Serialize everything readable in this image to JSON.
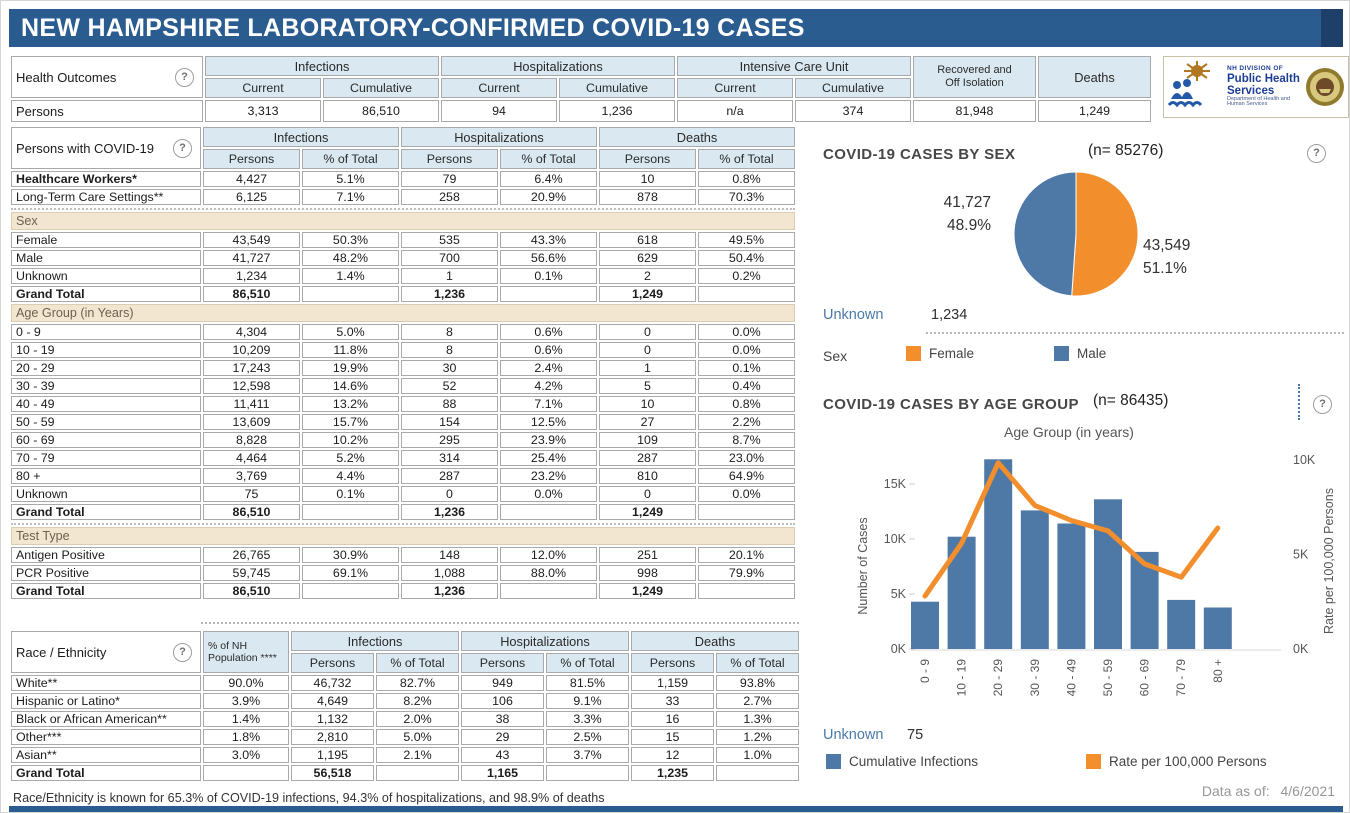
{
  "title": "NEW HAMPSHIRE LABORATORY-CONFIRMED COVID-19 CASES",
  "icons": {
    "help": "?"
  },
  "colors": {
    "bar_blue": "#4e79a7",
    "line_orange": "#f28e2b",
    "header_blue": "#d9e8f1",
    "band_tan": "#f3e6d1",
    "titlebar_blue": "#2b5c90"
  },
  "health_outcomes": {
    "label": "Health Outcomes",
    "groups": [
      "Infections",
      "Hospitalizations",
      "Intensive Care Unit"
    ],
    "sub_headers": [
      "Current",
      "Cumulative"
    ],
    "recovered_line1": "Recovered and",
    "recovered_line2": "Off Isolation",
    "deaths_header": "Deaths",
    "row_label": "Persons",
    "values": [
      "3,313",
      "86,510",
      "94",
      "1,236",
      "n/a",
      "374",
      "81,948",
      "1,249"
    ]
  },
  "logo": {
    "line1": "NH DIVISION OF",
    "line2": "Public Health Services",
    "line3": "Department of Health and Human Services"
  },
  "persons_table": {
    "label": "Persons with COVID-19",
    "groups": [
      "Infections",
      "Hospitalizations",
      "Deaths"
    ],
    "sub_headers": [
      "Persons",
      "% of Total",
      "Persons",
      "% of Total",
      "Persons",
      "% of Total"
    ],
    "blocks": [
      {
        "type": "rows",
        "rows": [
          {
            "label": "Healthcare Workers*",
            "bold": true,
            "cells": [
              "4,427",
              "5.1%",
              "79",
              "6.4%",
              "10",
              "0.8%"
            ]
          },
          {
            "label": "Long-Term Care Settings**",
            "cells": [
              "6,125",
              "7.1%",
              "258",
              "20.9%",
              "878",
              "70.3%"
            ]
          }
        ]
      },
      {
        "type": "divider"
      },
      {
        "type": "band",
        "title": "Sex"
      },
      {
        "type": "rows",
        "rows": [
          {
            "label": "Female",
            "cells": [
              "43,549",
              "50.3%",
              "535",
              "43.3%",
              "618",
              "49.5%"
            ]
          },
          {
            "label": "Male",
            "cells": [
              "41,727",
              "48.2%",
              "700",
              "56.6%",
              "629",
              "50.4%"
            ]
          },
          {
            "label": "Unknown",
            "cells": [
              "1,234",
              "1.4%",
              "1",
              "0.1%",
              "2",
              "0.2%"
            ]
          },
          {
            "label": "Grand Total",
            "total": true,
            "cells": [
              "86,510",
              "",
              "1,236",
              "",
              "1,249",
              ""
            ]
          }
        ]
      },
      {
        "type": "band",
        "title": "Age Group (in Years)"
      },
      {
        "type": "rows",
        "rows": [
          {
            "label": "0 - 9",
            "cells": [
              "4,304",
              "5.0%",
              "8",
              "0.6%",
              "0",
              "0.0%"
            ]
          },
          {
            "label": "10 - 19",
            "cells": [
              "10,209",
              "11.8%",
              "8",
              "0.6%",
              "0",
              "0.0%"
            ]
          },
          {
            "label": "20 - 29",
            "cells": [
              "17,243",
              "19.9%",
              "30",
              "2.4%",
              "1",
              "0.1%"
            ]
          },
          {
            "label": "30 - 39",
            "cells": [
              "12,598",
              "14.6%",
              "52",
              "4.2%",
              "5",
              "0.4%"
            ]
          },
          {
            "label": "40 - 49",
            "cells": [
              "11,411",
              "13.2%",
              "88",
              "7.1%",
              "10",
              "0.8%"
            ]
          },
          {
            "label": "50 - 59",
            "cells": [
              "13,609",
              "15.7%",
              "154",
              "12.5%",
              "27",
              "2.2%"
            ]
          },
          {
            "label": "60 - 69",
            "cells": [
              "8,828",
              "10.2%",
              "295",
              "23.9%",
              "109",
              "8.7%"
            ]
          },
          {
            "label": "70 - 79",
            "cells": [
              "4,464",
              "5.2%",
              "314",
              "25.4%",
              "287",
              "23.0%"
            ]
          },
          {
            "label": "80 +",
            "cells": [
              "3,769",
              "4.4%",
              "287",
              "23.2%",
              "810",
              "64.9%"
            ]
          },
          {
            "label": "Unknown",
            "cells": [
              "75",
              "0.1%",
              "0",
              "0.0%",
              "0",
              "0.0%"
            ]
          },
          {
            "label": "Grand Total",
            "total": true,
            "cells": [
              "86,510",
              "",
              "1,236",
              "",
              "1,249",
              ""
            ]
          }
        ]
      },
      {
        "type": "divider"
      },
      {
        "type": "band",
        "title": "Test Type"
      },
      {
        "type": "rows",
        "rows": [
          {
            "label": "Antigen Positive",
            "cells": [
              "26,765",
              "30.9%",
              "148",
              "12.0%",
              "251",
              "20.1%"
            ]
          },
          {
            "label": "PCR Positive",
            "cells": [
              "59,745",
              "69.1%",
              "1,088",
              "88.0%",
              "998",
              "79.9%"
            ]
          },
          {
            "label": "Grand Total",
            "total": true,
            "cells": [
              "86,510",
              "",
              "1,236",
              "",
              "1,249",
              ""
            ]
          }
        ]
      }
    ]
  },
  "race_table": {
    "label": "Race / Ethnicity",
    "pop_header": "% of NH Population ****",
    "groups": [
      "Infections",
      "Hospitalizations",
      "Deaths"
    ],
    "sub_headers": [
      "Persons",
      "% of Total",
      "Persons",
      "% of Total",
      "Persons",
      "% of Total"
    ],
    "rows": [
      {
        "label": "White**",
        "cells": [
          "90.0%",
          "46,732",
          "82.7%",
          "949",
          "81.5%",
          "1,159",
          "93.8%"
        ]
      },
      {
        "label": "Hispanic or Latino*",
        "cells": [
          "3.9%",
          "4,649",
          "8.2%",
          "106",
          "9.1%",
          "33",
          "2.7%"
        ]
      },
      {
        "label": "Black or African American**",
        "cells": [
          "1.4%",
          "1,132",
          "2.0%",
          "38",
          "3.3%",
          "16",
          "1.3%"
        ]
      },
      {
        "label": "Other***",
        "cells": [
          "1.8%",
          "2,810",
          "5.0%",
          "29",
          "2.5%",
          "15",
          "1.2%"
        ]
      },
      {
        "label": "Asian**",
        "cells": [
          "3.0%",
          "1,195",
          "2.1%",
          "43",
          "3.7%",
          "12",
          "1.0%"
        ]
      },
      {
        "label": "Grand Total",
        "total": true,
        "cells": [
          "",
          "56,518",
          "",
          "1,165",
          "",
          "1,235",
          ""
        ]
      }
    ]
  },
  "footnote": "Race/Ethnicity is known for 65.3% of COVID-19 infections, 94.3% of hospitalizations, and 98.9% of deaths",
  "sex_section": {
    "title": "COVID-19 CASES BY SEX",
    "n_label": "(n= 85276)",
    "male_callout": [
      "41,727",
      "48.9%"
    ],
    "female_callout": [
      "43,549",
      "51.1%"
    ],
    "unknown_label": "Unknown",
    "unknown_value": "1,234",
    "legend_title": "Sex",
    "legend": [
      "Female",
      "Male"
    ]
  },
  "age_section": {
    "title": "COVID-19 CASES BY AGE GROUP",
    "n_label": "(n= 86435)",
    "unknown_label": "Unknown",
    "unknown_value": "75",
    "legend": [
      "Cumulative Infections",
      "Rate per 100,000 Persons"
    ],
    "data_as_of_label": "Data as of:",
    "data_as_of_value": "4/6/2021"
  },
  "chart_data": [
    {
      "type": "pie",
      "title": "COVID-19 CASES BY SEX",
      "n": 85276,
      "slices": [
        {
          "label": "Female",
          "value": 43549,
          "pct": 51.1,
          "color": "#f28e2b"
        },
        {
          "label": "Male",
          "value": 41727,
          "pct": 48.9,
          "color": "#4e79a7"
        }
      ],
      "unknown": 1234,
      "legend_position": "bottom"
    },
    {
      "type": "bar+line",
      "title": "COVID-19 CASES BY AGE GROUP",
      "n": 86435,
      "xlabel": "Age Group (in years)",
      "categories": [
        "0 - 9",
        "10 - 19",
        "20 - 29",
        "30 - 39",
        "40 - 49",
        "50 - 59",
        "60 - 69",
        "70 - 79",
        "80 +"
      ],
      "series": [
        {
          "name": "Cumulative Infections",
          "type": "bar",
          "axis": "left",
          "color": "#4e79a7",
          "values": [
            4304,
            10209,
            17243,
            12598,
            11411,
            13609,
            8828,
            4464,
            3769
          ]
        },
        {
          "name": "Rate per 100,000 Persons",
          "type": "line",
          "axis": "right",
          "color": "#f28e2b",
          "values": [
            2800,
            5600,
            9850,
            7600,
            6800,
            6250,
            4500,
            3800,
            6400
          ]
        }
      ],
      "left_axis": {
        "title": "Number of Cases",
        "ticks": [
          0,
          5000,
          10000,
          15000
        ],
        "lim": [
          0,
          17500
        ]
      },
      "right_axis": {
        "title": "Rate per 100,000 Persons",
        "ticks": [
          0,
          5000,
          10000
        ],
        "lim": [
          0,
          10600
        ]
      },
      "unknown": 75,
      "grid": false
    }
  ]
}
